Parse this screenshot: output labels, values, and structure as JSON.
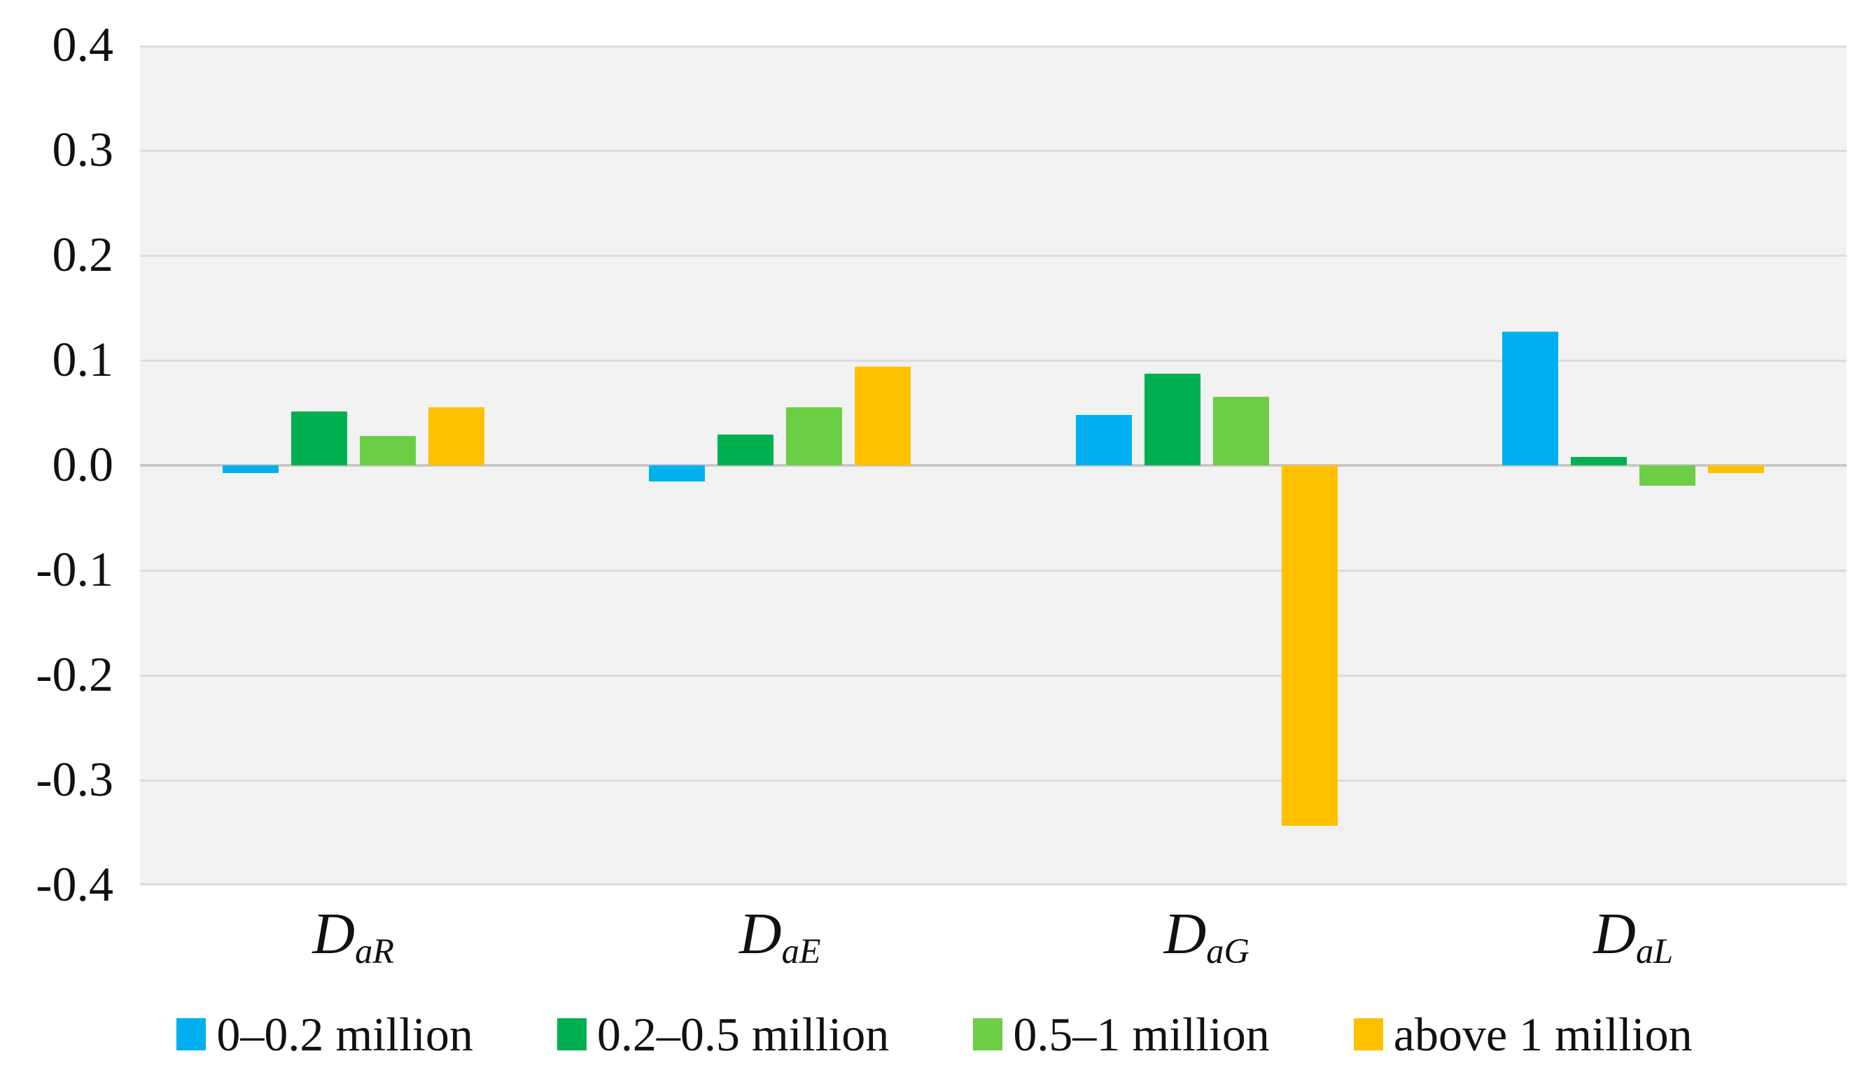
{
  "figure": {
    "background": "#ffffff",
    "plot_background": "#f2f2f2",
    "gridline_color": "#dcdcdc",
    "zero_line_color": "#c9c9c9",
    "text_color": "#111111"
  },
  "chart_data": {
    "type": "bar",
    "title": "",
    "xlabel": "",
    "ylabel": "",
    "categories": [
      {
        "label": "D",
        "subscript": "aR"
      },
      {
        "label": "D",
        "subscript": "aE"
      },
      {
        "label": "D",
        "subscript": "aG"
      },
      {
        "label": "D",
        "subscript": "aL"
      }
    ],
    "series": [
      {
        "name": "0–0.2 million",
        "color": "#00B0F0",
        "values": [
          -0.007,
          -0.015,
          0.048,
          0.127
        ]
      },
      {
        "name": "0.2–0.5 million",
        "color": "#00B050",
        "values": [
          0.051,
          0.029,
          0.087,
          0.008
        ]
      },
      {
        "name": "0.5–1 million",
        "color": "#6CCE44",
        "values": [
          0.028,
          0.055,
          0.065,
          -0.019
        ]
      },
      {
        "name": "above 1 million",
        "color": "#FFC000",
        "values": [
          0.055,
          0.094,
          -0.343,
          -0.007
        ]
      }
    ],
    "y_axis": {
      "min": -0.4,
      "max": 0.4,
      "step": 0.1,
      "tick_labels": [
        "0.4",
        "0.3",
        "0.2",
        "0.1",
        "0.0",
        "-0.1",
        "-0.2",
        "-0.3",
        "-0.4"
      ]
    },
    "grid": true,
    "legend_position": "bottom"
  }
}
